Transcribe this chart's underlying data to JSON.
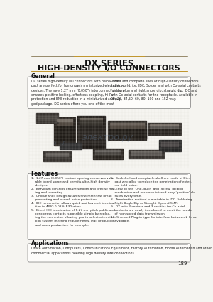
{
  "title_line1": "DX SERIES",
  "title_line2": "HIGH-DENSITY I/O CONNECTORS",
  "page_bg": "#f5f4f0",
  "section_general": "General",
  "section_features": "Features",
  "section_applications": "Applications",
  "general_left": "DX series high-density I/O connectors with below com-\npact are perfect for tomorrow's miniaturized electronic\ndevices. The new 1.27 mm (0.050\") interconnect design\nensures positive locking, effortless coupling, Hi-Rel\nprotection and EMI reduction in a miniaturized and rug-\nged package. DX series offers you one of the most",
  "general_right": "varied and complete lines of High-Density connectors\nin the world, i.e. IDC, Solder and with Co-axial contacts\nfor the plug and right angle dip, straight dip, IDC and\nwith Co-axial contacts for the receptacle. Available in\n20, 26, 34,50, 60, 80, 100 and 152 way.",
  "features_left": "1.  1.27 mm (0.050\") contact spacing conserves valu-\n    able board space and permits ultra-high density\n    designs.\n2.  Beryllium contacts ensure smooth and precise mat-\n    ing and unmating.\n3.  Unique shell design assures first mate/last break\n    preventing and overall noise protection.\n4.  IDC termination allows quick and low cost termina-\n    tion to AWG 0.08 & B30 wires.\n5.  Direct IDC termination of 1.27 mm pitch public and\n    coax press contacts is possible simply by replac-\n    ing the connector, allowing you to select a termina-\n    tion system meeting requirements. Mail production\n    and mass production, for example.",
  "features_right": "6.  Backshell and receptacle shell are made of Die-\n    cast zinc alloy to reduce the penetration of exter-\n    nal field noise.\n7.  Easy to use 'One-Touch' and 'Screw' locking\n    mechanism and assure quick and easy 'positive' clo-\n    sures every time.\n8.  Termination method is available in IDC, Soldering,\n    Right Angle Dip or Straight Dip and SMT.\n9.  DX with 3 centers and 3 cavities for Co-axial\n    contacts are newly introduced to meet the needs\n    of high speed data transmission.\n10. Shielded Plug-in type for interface between 2 firms\n    available.",
  "applications_text": "Office Automation, Computers, Communications Equipment, Factory Automation, Home Automation and other\ncommercial applications needing high density interconnections.",
  "page_number": "189",
  "title_color": "#111111",
  "line_color_brown": "#b8860b",
  "line_color_gray": "#888888",
  "section_bold_color": "#111111",
  "box_border_color": "#777777",
  "box_fill": "#fdfcfa",
  "text_color": "#222222",
  "img_bg": "#c8c4bc",
  "img_grid": "#b0aca4"
}
